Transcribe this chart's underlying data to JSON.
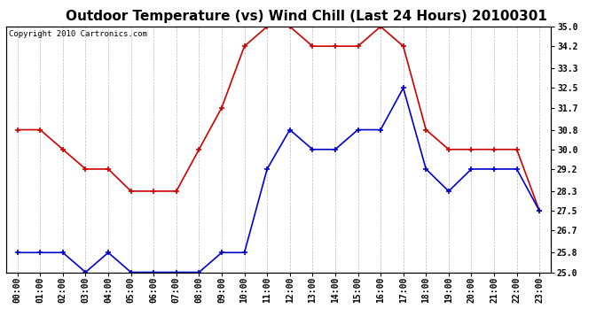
{
  "title": "Outdoor Temperature (vs) Wind Chill (Last 24 Hours) 20100301",
  "copyright": "Copyright 2010 Cartronics.com",
  "hours": [
    "00:00",
    "01:00",
    "02:00",
    "03:00",
    "04:00",
    "05:00",
    "06:00",
    "07:00",
    "08:00",
    "09:00",
    "10:00",
    "11:00",
    "12:00",
    "13:00",
    "14:00",
    "15:00",
    "16:00",
    "17:00",
    "18:00",
    "19:00",
    "20:00",
    "21:00",
    "22:00",
    "23:00"
  ],
  "red_data": [
    30.8,
    30.8,
    30.0,
    29.2,
    29.2,
    28.3,
    28.3,
    28.3,
    30.0,
    31.7,
    34.2,
    35.0,
    35.0,
    34.2,
    34.2,
    34.2,
    35.0,
    34.2,
    30.8,
    30.0,
    30.0,
    30.0,
    30.0,
    27.5
  ],
  "blue_data": [
    25.8,
    25.8,
    25.8,
    25.0,
    25.8,
    25.0,
    25.0,
    25.0,
    25.0,
    25.8,
    25.8,
    29.2,
    30.8,
    30.0,
    30.0,
    30.8,
    30.8,
    32.5,
    29.2,
    28.3,
    29.2,
    29.2,
    29.2,
    27.5
  ],
  "red_color": "#cc0000",
  "blue_color": "#0000cc",
  "ylim_min": 25.0,
  "ylim_max": 35.0,
  "yticks": [
    25.0,
    25.8,
    26.7,
    27.5,
    28.3,
    29.2,
    30.0,
    30.8,
    31.7,
    32.5,
    33.3,
    34.2,
    35.0
  ],
  "bg_color": "#ffffff",
  "grid_color": "#aaaaaa",
  "title_fontsize": 11,
  "copyright_fontsize": 6.5,
  "tick_fontsize": 7,
  "line_width": 1.2,
  "marker_size": 4
}
